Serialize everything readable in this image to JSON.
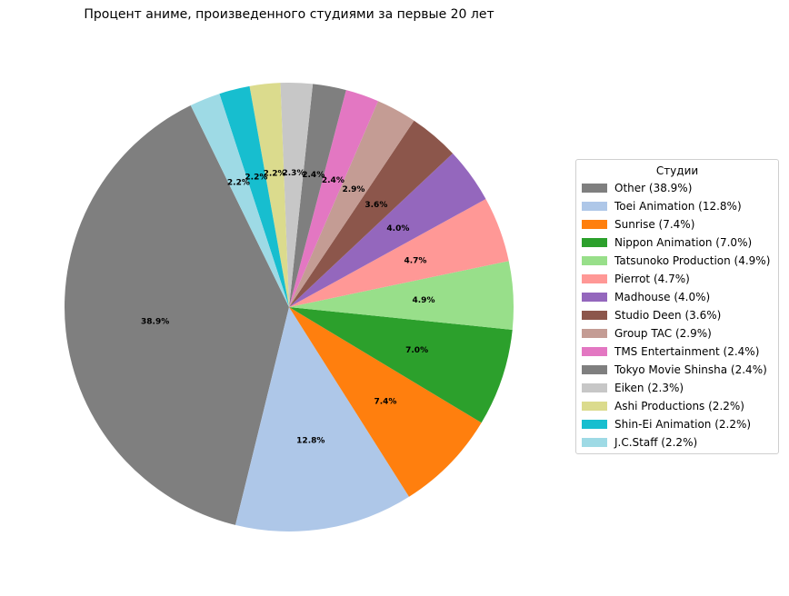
{
  "chart_data": {
    "type": "pie",
    "title": "Процент аниме, произведенного студиями за первые 20 лет",
    "legend_title": "Студии",
    "legend_position": "right",
    "start_angle_deg": 116,
    "direction": "counterclockwise",
    "slices": [
      {
        "label": "Other",
        "value": 38.9,
        "pct_label": "38.9%",
        "legend": "Other (38.9%)",
        "color": "#7f7f7f"
      },
      {
        "label": "Toei Animation",
        "value": 12.8,
        "pct_label": "12.8%",
        "legend": "Toei Animation (12.8%)",
        "color": "#aec7e8"
      },
      {
        "label": "Sunrise",
        "value": 7.4,
        "pct_label": "7.4%",
        "legend": "Sunrise (7.4%)",
        "color": "#ff7f0e"
      },
      {
        "label": "Nippon Animation",
        "value": 7.0,
        "pct_label": "7.0%",
        "legend": "Nippon Animation (7.0%)",
        "color": "#2ca02c"
      },
      {
        "label": "Tatsunoko Production",
        "value": 4.9,
        "pct_label": "4.9%",
        "legend": "Tatsunoko Production (4.9%)",
        "color": "#98df8a"
      },
      {
        "label": "Pierrot",
        "value": 4.7,
        "pct_label": "4.7%",
        "legend": "Pierrot (4.7%)",
        "color": "#ff9896"
      },
      {
        "label": "Madhouse",
        "value": 4.0,
        "pct_label": "4.0%",
        "legend": "Madhouse (4.0%)",
        "color": "#9467bd"
      },
      {
        "label": "Studio Deen",
        "value": 3.6,
        "pct_label": "3.6%",
        "legend": "Studio Deen (3.6%)",
        "color": "#8c564b"
      },
      {
        "label": "Group TAC",
        "value": 2.9,
        "pct_label": "2.9%",
        "legend": "Group TAC (2.9%)",
        "color": "#c49c94"
      },
      {
        "label": "TMS Entertainment",
        "value": 2.4,
        "pct_label": "2.4%",
        "legend": "TMS Entertainment (2.4%)",
        "color": "#e377c2"
      },
      {
        "label": "Tokyo Movie Shinsha",
        "value": 2.4,
        "pct_label": "2.4%",
        "legend": "Tokyo Movie Shinsha (2.4%)",
        "color": "#7f7f7f"
      },
      {
        "label": "Eiken",
        "value": 2.3,
        "pct_label": "2.3%",
        "legend": "Eiken (2.3%)",
        "color": "#c7c7c7"
      },
      {
        "label": "Ashi Productions",
        "value": 2.2,
        "pct_label": "2.2%",
        "legend": "Ashi Productions (2.2%)",
        "color": "#dbdb8d"
      },
      {
        "label": "Shin-Ei Animation",
        "value": 2.2,
        "pct_label": "2.2%",
        "legend": "Shin-Ei Animation (2.2%)",
        "color": "#17becf"
      },
      {
        "label": "J.C.Staff",
        "value": 2.2,
        "pct_label": "2.2%",
        "legend": "J.C.Staff (2.2%)",
        "color": "#9edae5"
      }
    ]
  }
}
